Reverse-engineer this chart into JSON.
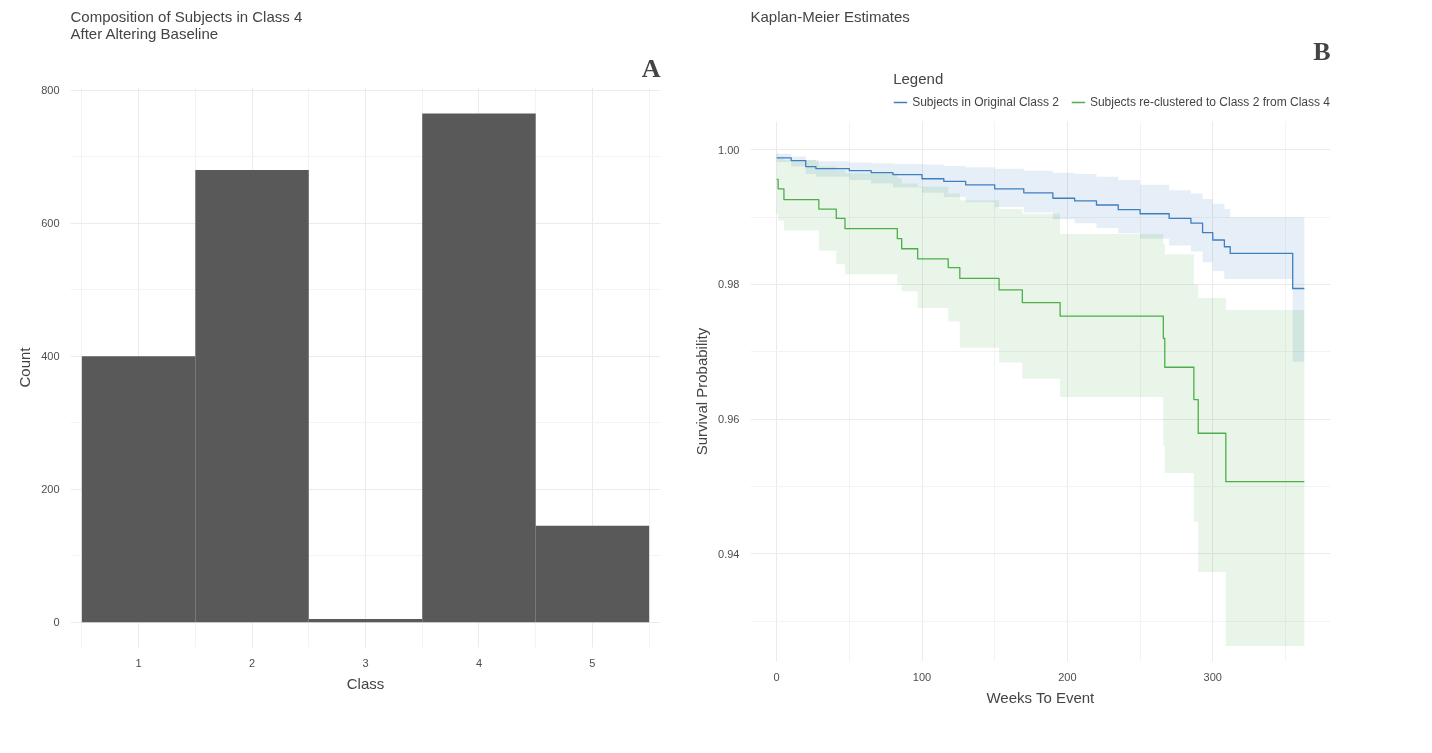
{
  "chart_data": [
    {
      "type": "bar",
      "title": "Composition of Subjects in Class 4\nAfter Altering Baseline",
      "xlabel": "Class",
      "ylabel": "Count",
      "annotations": [
        "A"
      ],
      "categories": [
        "1",
        "2",
        "3",
        "4",
        "5"
      ],
      "values": [
        400,
        680,
        5,
        765,
        145
      ],
      "color": "#595959",
      "ylim": [
        -38,
        804
      ],
      "yticks": [
        0,
        200,
        400,
        600,
        800
      ],
      "grid": true,
      "legend": false
    },
    {
      "type": "step",
      "title": "Kaplan-Meier Estimates",
      "xlabel": "Weeks To Event",
      "ylabel": "Survival Probability",
      "legend_title": "Legend",
      "annotations": [
        "B"
      ],
      "xlim": [
        -18,
        381
      ],
      "xticks": [
        0,
        100,
        200,
        300
      ],
      "ylim": [
        0.924,
        1.0042
      ],
      "yticks": [
        {
          "value": 0.94,
          "label": "0.94"
        },
        {
          "value": 0.96,
          "label": "0.96"
        },
        {
          "value": 0.98,
          "label": "0.98"
        },
        {
          "value": 1.0,
          "label": "1.00"
        }
      ],
      "grid": true,
      "legend": "top",
      "series": [
        {
          "name": "Subjects in Original Class 2",
          "color": "#3f7fbf",
          "x": [
            0,
            10,
            20,
            27,
            50,
            65,
            80,
            100,
            115,
            130,
            150,
            170,
            190,
            205,
            220,
            235,
            250,
            270,
            285,
            293,
            300,
            308,
            312,
            355,
            363
          ],
          "values": [
            0.9988,
            0.9984,
            0.9975,
            0.9972,
            0.9969,
            0.9966,
            0.9963,
            0.9957,
            0.9953,
            0.9948,
            0.9942,
            0.9936,
            0.9928,
            0.9924,
            0.9918,
            0.9911,
            0.9905,
            0.9898,
            0.9891,
            0.9877,
            0.9866,
            0.9856,
            0.9846,
            0.9794,
            0.9794
          ],
          "upper": [
            0.9994,
            0.999,
            0.9985,
            0.9983,
            0.9981,
            0.998,
            0.9979,
            0.9978,
            0.9976,
            0.9974,
            0.9972,
            0.9969,
            0.9966,
            0.9964,
            0.996,
            0.9955,
            0.9948,
            0.994,
            0.9935,
            0.9927,
            0.992,
            0.9912,
            0.99,
            0.99,
            0.99
          ],
          "lower": [
            0.9982,
            0.9975,
            0.9964,
            0.996,
            0.9955,
            0.995,
            0.9944,
            0.9936,
            0.993,
            0.9922,
            0.9915,
            0.9907,
            0.9897,
            0.9891,
            0.9884,
            0.9876,
            0.9868,
            0.9858,
            0.9849,
            0.9833,
            0.982,
            0.9808,
            0.9808,
            0.9685,
            0.9685
          ]
        },
        {
          "name": "Subjects re-clustered to Class 2 from Class 4",
          "color": "#4daf4a",
          "x": [
            0,
            1,
            5,
            29,
            41,
            47,
            83,
            86,
            97,
            118,
            126,
            153,
            169,
            195,
            266,
            267,
            287,
            290,
            309,
            363
          ],
          "values": [
            0.9956,
            0.9942,
            0.9926,
            0.9912,
            0.9898,
            0.9883,
            0.9868,
            0.9853,
            0.9838,
            0.9825,
            0.9809,
            0.9792,
            0.9773,
            0.9753,
            0.972,
            0.9677,
            0.9629,
            0.9579,
            0.9507,
            0.9507
          ],
          "upper": [
            0.9995,
            0.999,
            0.9985,
            0.9975,
            0.997,
            0.9965,
            0.9958,
            0.995,
            0.9945,
            0.9935,
            0.9925,
            0.9912,
            0.9905,
            0.9875,
            0.986,
            0.9845,
            0.98,
            0.978,
            0.9762,
            0.9762
          ],
          "lower": [
            0.9905,
            0.9895,
            0.988,
            0.985,
            0.983,
            0.9815,
            0.98,
            0.979,
            0.9765,
            0.9745,
            0.9706,
            0.9684,
            0.966,
            0.9633,
            0.956,
            0.952,
            0.9448,
            0.9373,
            0.9263,
            0.9263
          ]
        }
      ]
    }
  ]
}
